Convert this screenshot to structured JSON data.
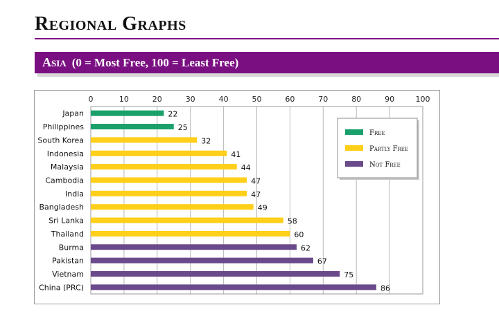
{
  "page": {
    "title": "Regional Graphs",
    "section": {
      "region": "Asia",
      "scale": "(0 = Most Free, 100 = Least Free)"
    }
  },
  "colors": {
    "accent": "#7a0f82",
    "free": "#1aa06a",
    "partly_free": "#ffcf1a",
    "not_free": "#6b4a8c"
  },
  "chart_data": {
    "type": "bar",
    "orientation": "horizontal",
    "title": "",
    "xlabel": "",
    "ylabel": "",
    "xlim": [
      0,
      100
    ],
    "x_ticks": [
      0,
      10,
      20,
      30,
      40,
      50,
      60,
      70,
      80,
      90,
      100
    ],
    "grid": true,
    "legend_position": "top-right",
    "legend": [
      {
        "key": "free",
        "label": "Free"
      },
      {
        "key": "partly_free",
        "label": "Partly Free"
      },
      {
        "key": "not_free",
        "label": "Not Free"
      }
    ],
    "categories": [
      "Japan",
      "Philippines",
      "South Korea",
      "Indonesia",
      "Malaysia",
      "Cambodia",
      "India",
      "Bangladesh",
      "Sri Lanka",
      "Thailand",
      "Burma",
      "Pakistan",
      "Vietnam",
      "China (PRC)"
    ],
    "values": [
      22,
      25,
      32,
      41,
      44,
      47,
      47,
      49,
      58,
      60,
      62,
      67,
      75,
      86
    ],
    "status": [
      "free",
      "free",
      "partly_free",
      "partly_free",
      "partly_free",
      "partly_free",
      "partly_free",
      "partly_free",
      "partly_free",
      "partly_free",
      "not_free",
      "not_free",
      "not_free",
      "not_free"
    ]
  }
}
